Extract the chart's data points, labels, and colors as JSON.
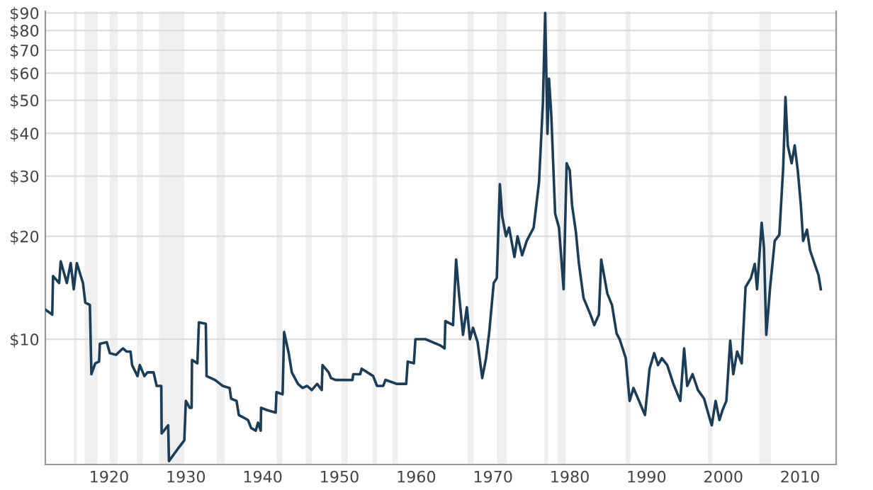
{
  "chart_data": {
    "type": "line",
    "x": [
      1911.7,
      1912.6,
      1912.7,
      1913.5,
      1913.7,
      1914.5,
      1915.0,
      1915.4,
      1915.8,
      1916.6,
      1916.9,
      1917.5,
      1917.7,
      1918.2,
      1918.7,
      1918.8,
      1919.7,
      1920.1,
      1920.9,
      1921.8,
      1922.3,
      1922.8,
      1923.0,
      1923.7,
      1924.0,
      1924.6,
      1925.0,
      1925.8,
      1926.2,
      1926.8,
      1926.85,
      1927.7,
      1927.8,
      1928.9,
      1929.8,
      1930.0,
      1930.5,
      1930.75,
      1930.8,
      1931.5,
      1931.7,
      1932.6,
      1932.7,
      1933.8,
      1934.8,
      1935.7,
      1935.9,
      1936.6,
      1936.9,
      1937.5,
      1938.1,
      1938.5,
      1939.1,
      1939.4,
      1939.75,
      1939.8,
      1940.6,
      1941.7,
      1941.8,
      1942.6,
      1942.8,
      1943.4,
      1943.8,
      1944.6,
      1945.2,
      1945.8,
      1946.4,
      1947.1,
      1947.7,
      1947.8,
      1948.6,
      1948.9,
      1949.5,
      1951.7,
      1951.8,
      1952.7,
      1952.9,
      1954.4,
      1954.9,
      1955.7,
      1956.0,
      1957.5,
      1958.7,
      1958.9,
      1959.7,
      1959.9,
      1961.2,
      1963.1,
      1963.7,
      1963.8,
      1964.8,
      1965.2,
      1965.6,
      1966.1,
      1966.6,
      1967.0,
      1967.4,
      1968.0,
      1968.6,
      1969.1,
      1969.5,
      1970.1,
      1970.5,
      1970.9,
      1971.2,
      1971.7,
      1972.1,
      1972.8,
      1973.2,
      1973.8,
      1974.4,
      1975.3,
      1976.0,
      1976.5,
      1976.8,
      1977.1,
      1977.3,
      1977.6,
      1978.1,
      1978.6,
      1979.2,
      1979.6,
      1980.0,
      1980.3,
      1980.8,
      1981.2,
      1981.8,
      1982.7,
      1983.2,
      1983.8,
      1984.1,
      1984.9,
      1985.5,
      1986.1,
      1986.5,
      1987.3,
      1987.8,
      1988.3,
      1988.9,
      1989.8,
      1990.4,
      1991.0,
      1991.5,
      1992.0,
      1992.7,
      1993.5,
      1994.4,
      1994.9,
      1995.3,
      1996.0,
      1996.7,
      1997.5,
      1998.1,
      1998.5,
      1999.0,
      1999.5,
      1999.9,
      2000.4,
      2000.9,
      2001.3,
      2001.8,
      2002.4,
      2002.9,
      2003.6,
      2004.1,
      2004.4,
      2005.0,
      2005.3,
      2005.6,
      2006.1,
      2006.7,
      2007.3,
      2007.8,
      2008.1,
      2008.4,
      2008.9,
      2009.3,
      2009.7,
      2010.1,
      2010.4,
      2010.9,
      2011.3,
      2011.9,
      2012.4,
      2012.7
    ],
    "series": [
      {
        "color": "#1b3d57",
        "values": [
          12.2,
          11.8,
          15.3,
          14.6,
          16.9,
          14.6,
          16.7,
          14.0,
          16.7,
          14.6,
          12.8,
          12.6,
          7.9,
          8.5,
          8.6,
          9.7,
          9.8,
          9.1,
          9.0,
          9.4,
          9.2,
          9.2,
          8.4,
          7.8,
          8.4,
          7.8,
          8.0,
          8.0,
          7.3,
          7.3,
          5.3,
          5.6,
          4.4,
          4.76,
          5.06,
          6.6,
          6.3,
          6.3,
          8.7,
          8.5,
          11.2,
          11.1,
          7.8,
          7.6,
          7.3,
          7.2,
          6.7,
          6.6,
          6.0,
          5.9,
          5.8,
          5.5,
          5.4,
          5.7,
          5.4,
          6.3,
          6.2,
          6.1,
          7.0,
          6.9,
          10.5,
          9.1,
          8.0,
          7.4,
          7.2,
          7.3,
          7.1,
          7.4,
          7.1,
          8.4,
          8.0,
          7.7,
          7.6,
          7.6,
          7.9,
          7.9,
          8.2,
          7.8,
          7.3,
          7.3,
          7.6,
          7.4,
          7.4,
          8.6,
          8.5,
          10.0,
          10.0,
          9.6,
          9.4,
          11.3,
          11.0,
          17.1,
          13.4,
          10.3,
          12.4,
          10.0,
          10.8,
          9.8,
          7.7,
          8.8,
          10.4,
          14.6,
          15.1,
          28.4,
          22.9,
          20.0,
          21.2,
          17.4,
          20.0,
          17.6,
          19.4,
          21.2,
          28.8,
          48.8,
          90,
          39.9,
          57.8,
          45.1,
          23.3,
          21.2,
          14.0,
          32.7,
          31.2,
          24.7,
          20.6,
          16.6,
          13.2,
          11.8,
          11.0,
          11.8,
          17.1,
          13.6,
          12.6,
          10.4,
          10.0,
          8.8,
          6.6,
          7.2,
          6.7,
          6.0,
          8.2,
          9.1,
          8.4,
          8.8,
          8.4,
          7.4,
          6.6,
          9.4,
          7.3,
          7.9,
          7.1,
          6.7,
          6.0,
          5.6,
          6.6,
          5.8,
          6.2,
          6.6,
          9.9,
          7.9,
          9.2,
          8.5,
          14.2,
          15.1,
          16.6,
          14.0,
          21.9,
          18.5,
          10.3,
          14.2,
          19.4,
          20.2,
          31.7,
          51.1,
          36.9,
          32.7,
          36.9,
          31.2,
          24.7,
          19.4,
          20.9,
          18.2,
          16.6,
          15.4,
          14.0
        ]
      }
    ],
    "log": "y",
    "xlim": [
      1911.7,
      2014.7
    ],
    "ylim": [
      4.3,
      91
    ],
    "xticks": [
      1920,
      1930,
      1940,
      1950,
      1960,
      1970,
      1980,
      1990,
      2000,
      2010
    ],
    "yticks": [
      {
        "value": 10,
        "label": "$10"
      },
      {
        "value": 20,
        "label": "$20"
      },
      {
        "value": 30,
        "label": "$30"
      },
      {
        "value": 40,
        "label": "$40"
      },
      {
        "value": 50,
        "label": "$50"
      },
      {
        "value": 60,
        "label": "$60"
      },
      {
        "value": 70,
        "label": "$70"
      },
      {
        "value": 80,
        "label": "$80"
      },
      {
        "value": 90,
        "label": "$90"
      }
    ],
    "grid": "y",
    "bands": [
      {
        "axis": "x",
        "from": 1915.4,
        "to": 1915.8,
        "color": "#efefef"
      },
      {
        "axis": "x",
        "from": 1916.8,
        "to": 1918.5,
        "color": "#efefef"
      },
      {
        "axis": "x",
        "from": 1920.1,
        "to": 1921.1,
        "color": "#efefef"
      },
      {
        "axis": "x",
        "from": 1923.6,
        "to": 1924.4,
        "color": "#efefef"
      },
      {
        "axis": "x",
        "from": 1926.5,
        "to": 1929.8,
        "color": "#efefef"
      },
      {
        "axis": "x",
        "from": 1934.0,
        "to": 1935.1,
        "color": "#efefef"
      },
      {
        "axis": "x",
        "from": 1941.8,
        "to": 1942.6,
        "color": "#efefef"
      },
      {
        "axis": "x",
        "from": 1945.6,
        "to": 1946.4,
        "color": "#efefef"
      },
      {
        "axis": "x",
        "from": 1950.3,
        "to": 1951.1,
        "color": "#efefef"
      },
      {
        "axis": "x",
        "from": 1954.3,
        "to": 1954.9,
        "color": "#efefef"
      },
      {
        "axis": "x",
        "from": 1956.9,
        "to": 1957.6,
        "color": "#efefef"
      },
      {
        "axis": "x",
        "from": 1966.7,
        "to": 1967.5,
        "color": "#efefef"
      },
      {
        "axis": "x",
        "from": 1970.5,
        "to": 1971.8,
        "color": "#efefef"
      },
      {
        "axis": "x",
        "from": 1976.7,
        "to": 1977.2,
        "color": "#efefef"
      },
      {
        "axis": "x",
        "from": 1978.4,
        "to": 1979.5,
        "color": "#efefef"
      },
      {
        "axis": "x",
        "from": 1987.3,
        "to": 1987.9,
        "color": "#efefef"
      },
      {
        "axis": "x",
        "from": 1998.0,
        "to": 1998.6,
        "color": "#efefef"
      },
      {
        "axis": "x",
        "from": 2004.7,
        "to": 2006.2,
        "color": "#efefef"
      }
    ]
  }
}
